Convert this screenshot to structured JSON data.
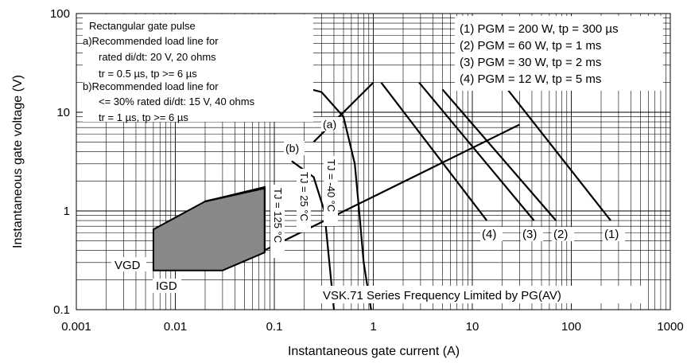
{
  "chart_data": {
    "type": "line",
    "xscale": "log",
    "yscale": "log",
    "xlim": [
      0.001,
      1000
    ],
    "ylim": [
      0.1,
      100
    ],
    "xlabel": "Instantaneous gate current (A)",
    "ylabel": "Instantaneous gate voltage (V)",
    "xticks": [
      "0.001",
      "0.01",
      "0.1",
      "1",
      "10",
      "100",
      "1000"
    ],
    "yticks": [
      "0.1",
      "1",
      "10",
      "100"
    ],
    "grid": true,
    "notes": [
      "Rectangular gate pulse",
      "a)Recommended load line for",
      "rated di/dt: 20 V, 20 ohms",
      "tr = 0.5 µs, tp >= 6 µs",
      "b)Recommended load line for",
      "<= 30% rated di/dt: 15 V, 40 ohms",
      "tr = 1 µs, tp >= 6 µs"
    ],
    "pgm_legend": [
      "(1) PGM = 200 W, tp = 300 µs",
      "(2) PGM = 60 W, tp = 1 ms",
      "(3) PGM = 30 W, tp = 2 ms",
      "(4) PGM = 12 W, tp = 5 ms"
    ],
    "footer_label": "VSK.71  Series Frequency Limited by PG(AV)",
    "region_labels": {
      "vgd": "VGD",
      "igd": "IGD"
    },
    "series": [
      {
        "name": "(a)",
        "points": [
          [
            0.25,
            5.0
          ],
          [
            1.0,
            20.0
          ]
        ]
      },
      {
        "name": "(b)",
        "points": [
          [
            0.08,
            0.4
          ],
          [
            30.0,
            7.5
          ]
        ]
      },
      {
        "name": "(1)",
        "points": [
          [
            20.0,
            20.0
          ],
          [
            250.0,
            0.8
          ]
        ]
      },
      {
        "name": "(2)",
        "points": [
          [
            5.0,
            17.0
          ],
          [
            70.0,
            0.8
          ]
        ]
      },
      {
        "name": "(3)",
        "points": [
          [
            2.9,
            20.0
          ],
          [
            42.0,
            0.8
          ]
        ]
      },
      {
        "name": "(4)",
        "points": [
          [
            1.2,
            20.0
          ],
          [
            14.0,
            0.8
          ]
        ]
      },
      {
        "name": "TJ = -40 °C",
        "points": [
          [
            0.09,
            22.0
          ],
          [
            0.3,
            16.0
          ],
          [
            0.5,
            9.0
          ],
          [
            0.65,
            3.0
          ],
          [
            0.72,
            1.0
          ],
          [
            0.8,
            0.3
          ],
          [
            0.95,
            0.1
          ]
        ]
      },
      {
        "name": "TJ = 25 °C",
        "points": [
          [
            0.15,
            3.2
          ],
          [
            0.25,
            2.2
          ],
          [
            0.32,
            1.0
          ],
          [
            0.35,
            0.4
          ],
          [
            0.4,
            0.1
          ]
        ]
      },
      {
        "name": "TJ = 125 °C",
        "points": [
          [
            0.02,
            1.25
          ],
          [
            0.08,
            1.7
          ],
          [
            0.08,
            0.38
          ]
        ]
      }
    ],
    "temp_labels": [
      "TJ = -40 °C",
      "TJ = 25 °C",
      "TJ = 125 °C"
    ],
    "curve_labels": [
      "(a)",
      "(b)",
      "(1)",
      "(2)",
      "(3)",
      "(4)"
    ],
    "region_polygon": [
      [
        0.006,
        0.25
      ],
      [
        0.006,
        0.65
      ],
      [
        0.02,
        1.25
      ],
      [
        0.08,
        1.75
      ],
      [
        0.08,
        0.38
      ],
      [
        0.03,
        0.25
      ]
    ],
    "region_color": "#888888"
  }
}
